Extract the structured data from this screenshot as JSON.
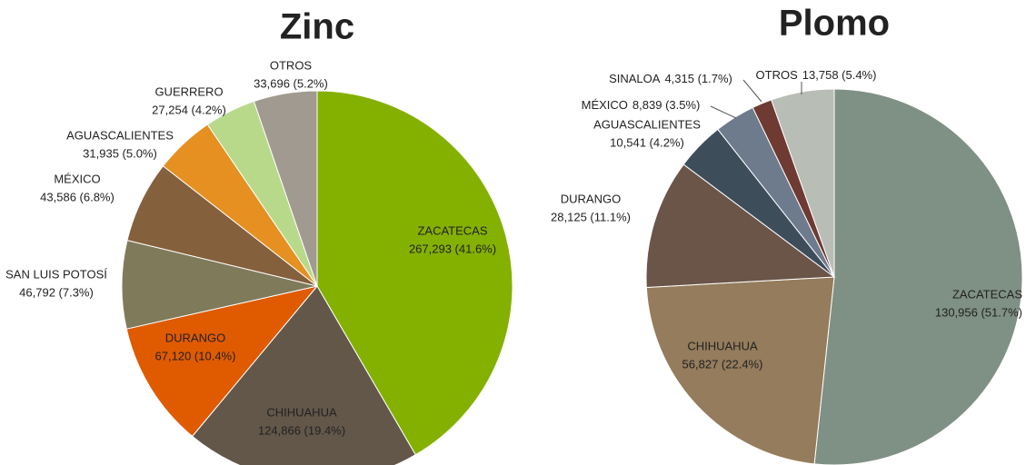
{
  "chart_data": [
    {
      "type": "pie",
      "title": "Zinc",
      "categories": [
        "ZACATECAS",
        "CHIHUAHUA",
        "DURANGO",
        "SAN LUIS POTOSÍ",
        "MÉXICO",
        "AGUASCALIENTES",
        "GUERRERO",
        "OTROS"
      ],
      "values": [
        267293,
        124866,
        67120,
        46792,
        43586,
        31935,
        27254,
        33696
      ],
      "value_labels": [
        "267,293 (41.6%)",
        "124,866  (19.4%)",
        "67,120 (10.4%)",
        "46,792  (7.3%)",
        "43,586 (6.8%)",
        "31,935  (5.0%)",
        "27,254 (4.2%)",
        "33,696 (5.2%)"
      ],
      "colors": [
        "#84b000",
        "#63574a",
        "#e05a00",
        "#7f7a5a",
        "#85603c",
        "#e59020",
        "#b8d98a",
        "#a09a90"
      ]
    },
    {
      "type": "pie",
      "title": "Plomo",
      "categories": [
        "ZACATECAS",
        "CHIHUAHUA",
        "DURANGO",
        "AGUASCALIENTES",
        "MÉXICO",
        "SINALOA",
        "OTROS"
      ],
      "values": [
        130956,
        56827,
        28125,
        10541,
        8839,
        4315,
        13758
      ],
      "value_labels": [
        "130,956 (51.7%)",
        "56,827 (22.4%)",
        "28,125 (11.1%)",
        "10,541 (4.2%)",
        "8,839  (3.5%)",
        "4,315 (1.7%)",
        "13,758  (5.4%)"
      ],
      "colors": [
        "#7f9084",
        "#947c5c",
        "#6b5548",
        "#3e4d5a",
        "#6d7b8d",
        "#6e3a32",
        "#b8bdb6"
      ]
    }
  ]
}
